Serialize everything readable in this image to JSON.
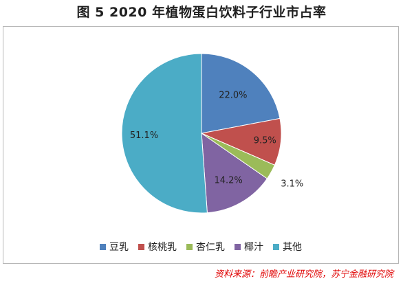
{
  "figure_label": "图 5",
  "source_text": "资料来源：前瞻产业研究院，苏宁金融研究院",
  "chart_data": {
    "type": "pie",
    "title": "2020 年植物蛋白饮料子行业市占率",
    "legend_position": "bottom",
    "slices": [
      {
        "name": "豆乳",
        "value": 22.0,
        "label": "22.0%",
        "color": "#4f81bd"
      },
      {
        "name": "核桃乳",
        "value": 9.5,
        "label": "9.5%",
        "color": "#c0504d"
      },
      {
        "name": "杏仁乳",
        "value": 3.1,
        "label": "3.1%",
        "color": "#9bbb59"
      },
      {
        "name": "椰汁",
        "value": 14.2,
        "label": "14.2%",
        "color": "#8064a2"
      },
      {
        "name": "其他",
        "value": 51.1,
        "label": "51.1%",
        "color": "#4bacc6"
      }
    ]
  }
}
